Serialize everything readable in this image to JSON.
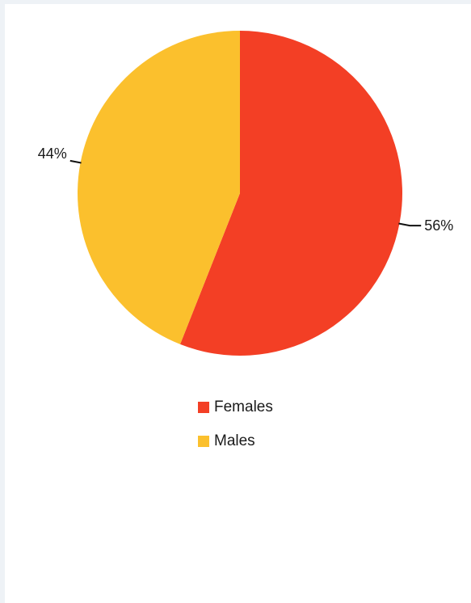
{
  "chart_data": {
    "type": "pie",
    "slices": [
      {
        "label": "Females",
        "value": 56,
        "display": "56%",
        "color": "#f33f25"
      },
      {
        "label": "Males",
        "value": 44,
        "display": "44%",
        "color": "#fbc02d"
      }
    ],
    "legend": {
      "position": "bottom",
      "items": [
        "Females",
        "Males"
      ]
    }
  }
}
